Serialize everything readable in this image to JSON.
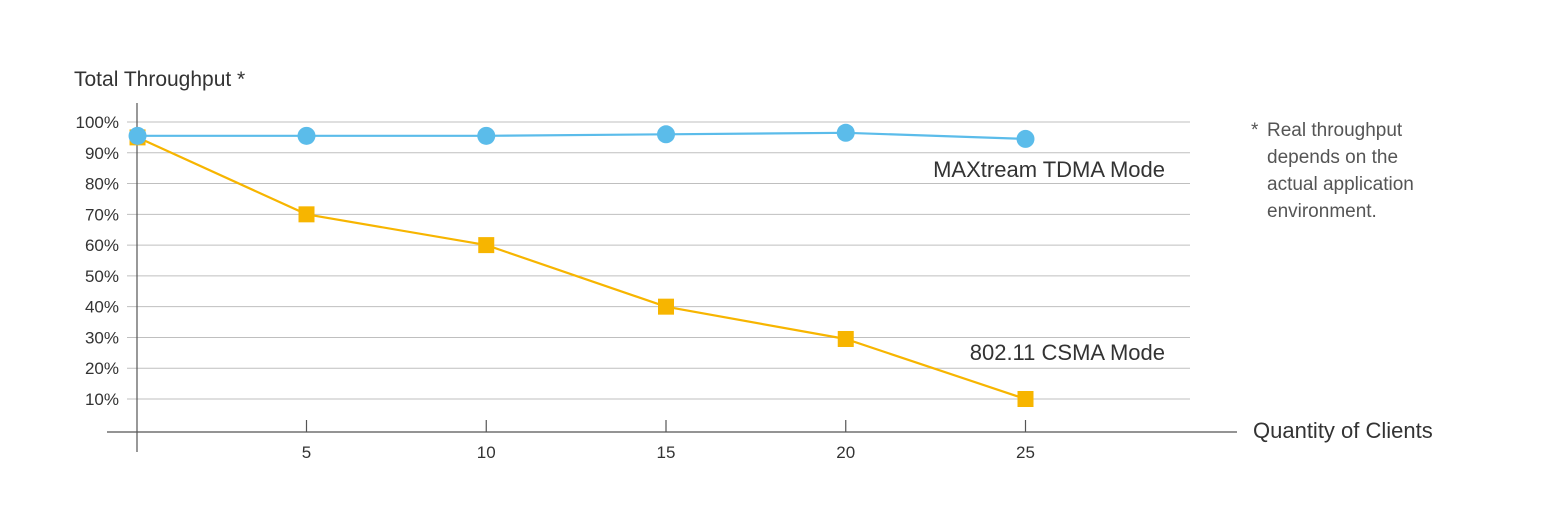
{
  "chart_data": {
    "type": "line",
    "ylabel": "Total Throughput *",
    "xlabel": "Quantity of Clients",
    "y_ticks": [
      10,
      20,
      30,
      40,
      50,
      60,
      70,
      80,
      90,
      100
    ],
    "y_tick_labels": [
      "10%",
      "20%",
      "30%",
      "40%",
      "50%",
      "60%",
      "70%",
      "80%",
      "90%",
      "100%"
    ],
    "x_ticks": [
      5,
      10,
      15,
      20,
      25
    ],
    "x_tick_labels": [
      "5",
      "10",
      "15",
      "20",
      "25"
    ],
    "series": [
      {
        "name": "MAXtream TDMA Mode",
        "label": "MAXtream TDMA Mode",
        "color": "#5bbcea",
        "marker": "circle",
        "x": [
          0.3,
          5,
          10,
          15,
          20,
          25
        ],
        "values": [
          95.5,
          95.5,
          95.5,
          96,
          96.5,
          94.5
        ]
      },
      {
        "name": "802.11 CSMA Mode",
        "label": "802.11 CSMA Mode",
        "color": "#f7b500",
        "marker": "square",
        "x": [
          0.3,
          5,
          10,
          15,
          20,
          25
        ],
        "values": [
          95,
          70,
          60,
          40,
          29.5,
          10
        ]
      }
    ],
    "grid_color": "#bfbfbf",
    "axis_color": "#555555",
    "footnote": {
      "marker": "*",
      "lines": [
        "Real throughput",
        "depends on the",
        "actual application",
        "environment."
      ]
    }
  }
}
